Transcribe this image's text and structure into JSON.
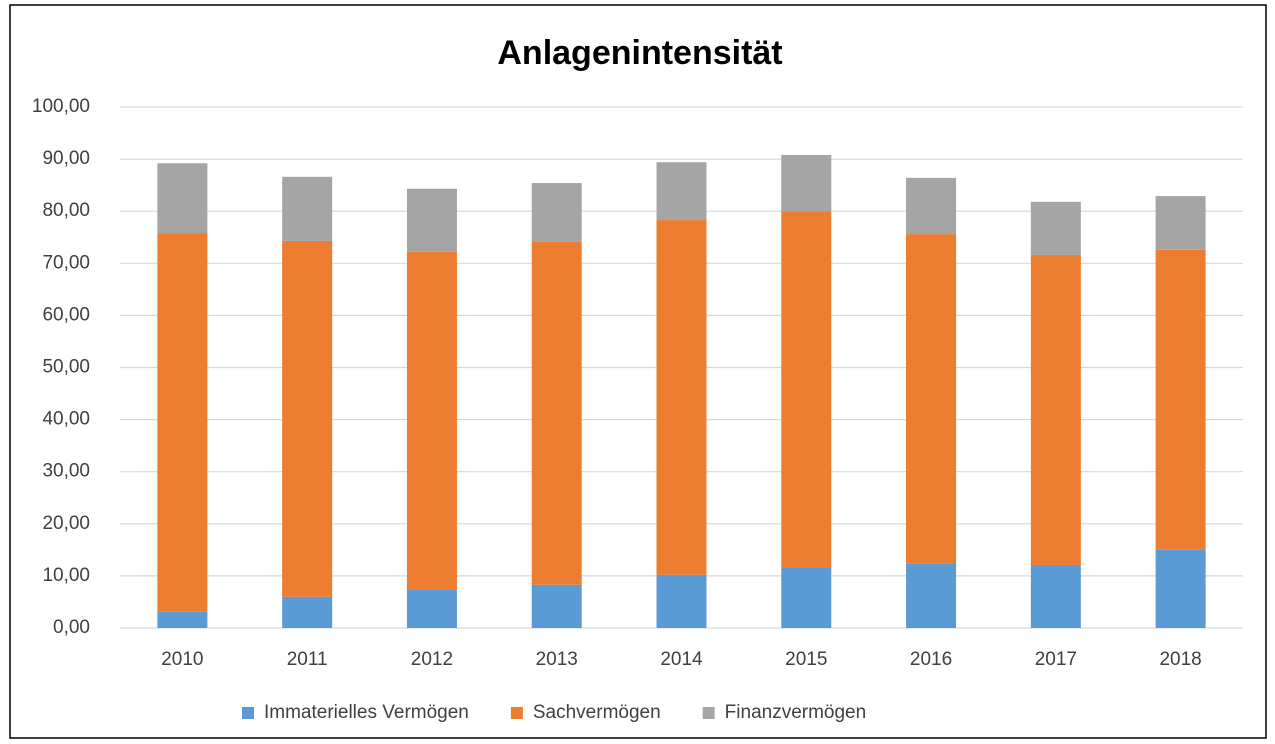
{
  "chart_data": {
    "type": "stacked_bar",
    "title": "Anlagenintensität",
    "categories": [
      "2010",
      "2011",
      "2012",
      "2013",
      "2014",
      "2015",
      "2016",
      "2017",
      "2018"
    ],
    "series": [
      {
        "name": "Immaterielles Vermögen",
        "color": "#5b9bd5",
        "values": [
          3.1,
          6.0,
          7.3,
          8.3,
          10.2,
          11.7,
          12.3,
          12.1,
          15.0
        ]
      },
      {
        "name": "Sachvermögen",
        "color": "#ed7d31",
        "values": [
          72.7,
          68.3,
          64.9,
          65.8,
          68.1,
          68.3,
          63.3,
          59.5,
          57.6
        ]
      },
      {
        "name": "Finanzvermögen",
        "color": "#a5a5a5",
        "values": [
          13.4,
          12.3,
          12.1,
          11.3,
          11.1,
          10.8,
          10.8,
          10.2,
          10.3
        ]
      }
    ],
    "ylim": [
      0,
      100
    ],
    "yticks": [
      {
        "value": 0,
        "label": "0,00"
      },
      {
        "value": 10,
        "label": "10,00"
      },
      {
        "value": 20,
        "label": "20,00"
      },
      {
        "value": 30,
        "label": "30,00"
      },
      {
        "value": 40,
        "label": "40,00"
      },
      {
        "value": 50,
        "label": "50,00"
      },
      {
        "value": 60,
        "label": "60,00"
      },
      {
        "value": 70,
        "label": "70,00"
      },
      {
        "value": 80,
        "label": "80,00"
      },
      {
        "value": 90,
        "label": "90,00"
      },
      {
        "value": 100,
        "label": "100,00"
      }
    ],
    "grid": true,
    "legend": "bottom"
  }
}
